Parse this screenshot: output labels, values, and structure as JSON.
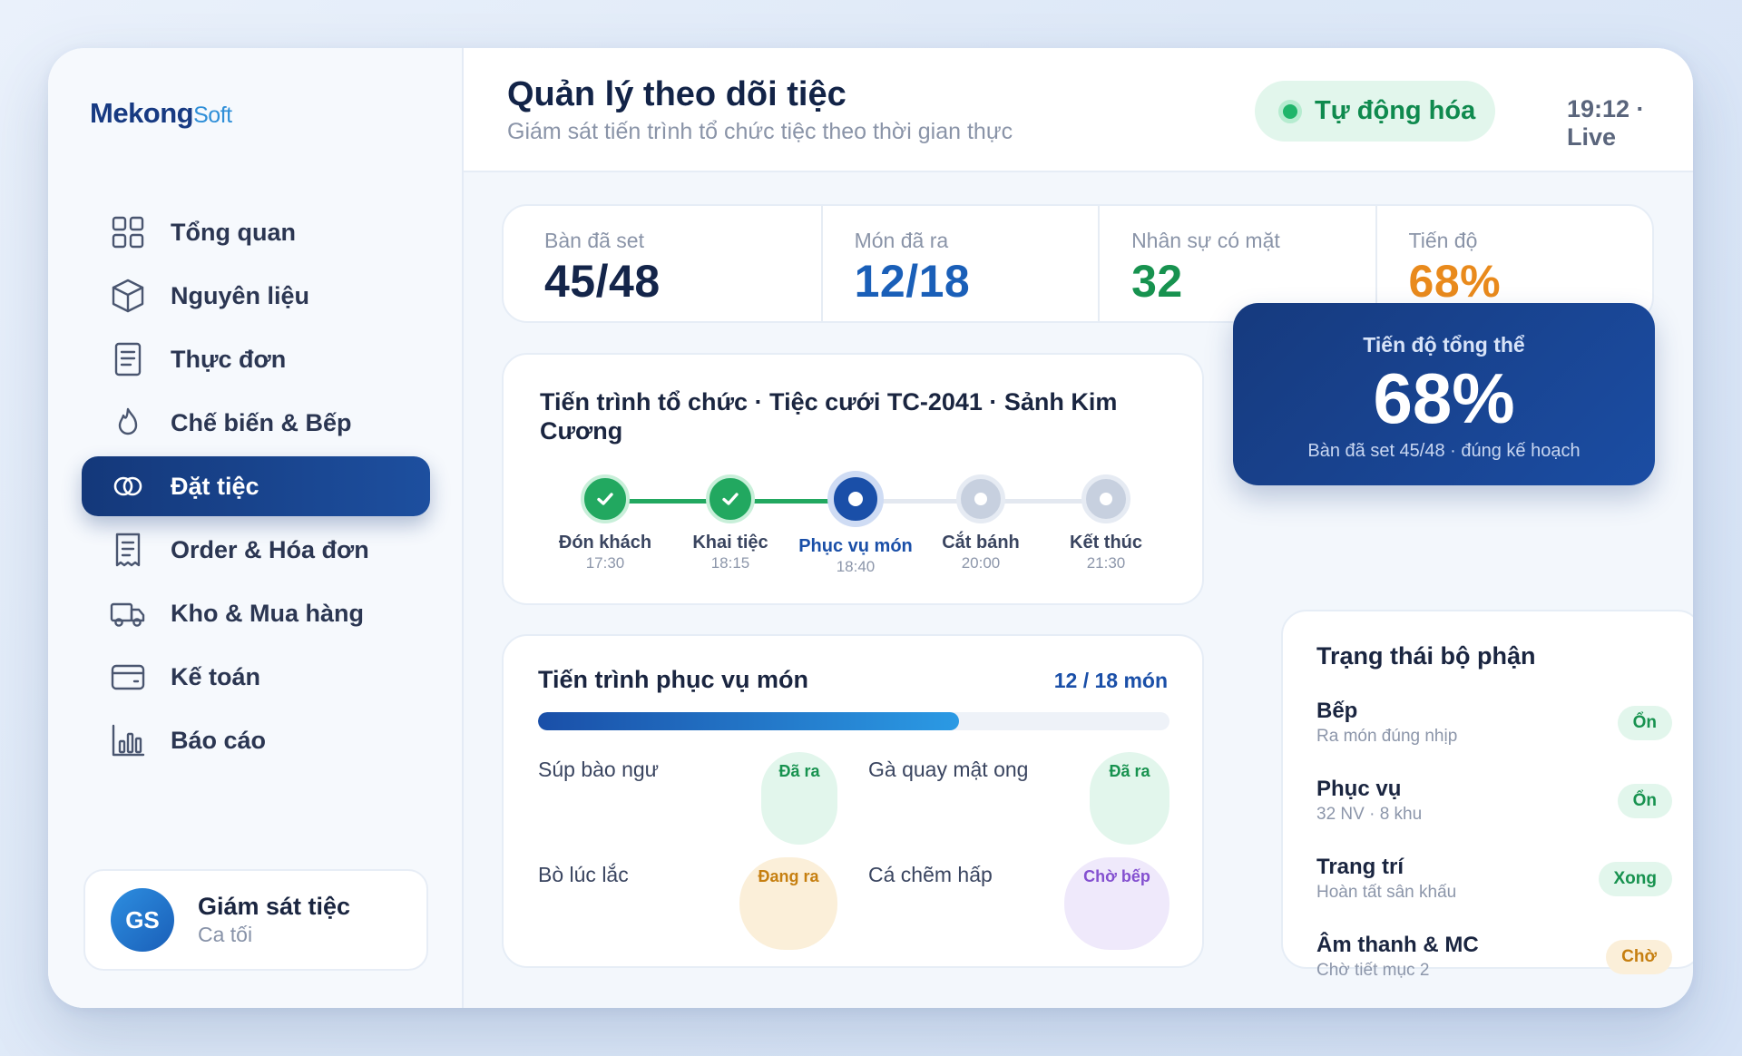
{
  "brand": {
    "part1": "Mekong",
    "part2": "Soft"
  },
  "nav": [
    {
      "label": "Tổng quan",
      "icon": "grid-icon"
    },
    {
      "label": "Nguyên liệu",
      "icon": "box-icon"
    },
    {
      "label": "Thực đơn",
      "icon": "document-icon"
    },
    {
      "label": "Chế biến & Bếp",
      "icon": "flame-icon"
    },
    {
      "label": "Đặt tiệc",
      "icon": "rings-icon",
      "active": true
    },
    {
      "label": "Order & Hóa đơn",
      "icon": "receipt-icon"
    },
    {
      "label": "Kho & Mua hàng",
      "icon": "truck-icon"
    },
    {
      "label": "Kế toán",
      "icon": "wallet-icon"
    },
    {
      "label": "Báo cáo",
      "icon": "bar-chart-icon"
    }
  ],
  "user": {
    "initials": "GS",
    "name": "Giám sát tiệc",
    "shift": "Ca tối"
  },
  "header": {
    "title": "Quản lý theo dõi tiệc",
    "subtitle": "Giám sát tiến trình tổ chức tiệc theo thời gian thực",
    "auto_label": "Tự động hóa",
    "clock": "19:12 · Live"
  },
  "stats": [
    {
      "label": "Bàn đã set",
      "value": "45/48",
      "color": "#14254a"
    },
    {
      "label": "Món đã ra",
      "value": "12/18",
      "color": "#1a5fb8"
    },
    {
      "label": "Nhân sự có mặt",
      "value": "32",
      "color": "#17924f"
    },
    {
      "label": "Tiến độ",
      "value": "68%",
      "color": "#e98a1c"
    }
  ],
  "timeline": {
    "title": "Tiến trình tổ chức · Tiệc cưới TC-2041 · Sảnh Kim Cương",
    "steps": [
      {
        "name": "Đón khách",
        "time": "17:30",
        "state": "done"
      },
      {
        "name": "Khai tiệc",
        "time": "18:15",
        "state": "done"
      },
      {
        "name": "Phục vụ món",
        "time": "18:40",
        "state": "current"
      },
      {
        "name": "Cắt bánh",
        "time": "20:00",
        "state": "todo"
      },
      {
        "name": "Kết thúc",
        "time": "21:30",
        "state": "todo"
      }
    ]
  },
  "overall": {
    "label": "Tiến độ tổng thể",
    "value": "68%",
    "subtitle": "Bàn đã set 45/48 · đúng kế hoạch"
  },
  "serving": {
    "title": "Tiến trình phục vụ món",
    "count": "12 / 18 món",
    "progress": 0.667,
    "dishes": [
      {
        "name": "Súp bào ngư",
        "status": "Đã ra",
        "bg": "#e2f6ec",
        "fg": "#17924f"
      },
      {
        "name": "Gà quay mật ong",
        "status": "Đã ra",
        "bg": "#e2f6ec",
        "fg": "#17924f"
      },
      {
        "name": "Bò lúc lắc",
        "status": "Đang ra",
        "bg": "#fbefd9",
        "fg": "#c67f10"
      },
      {
        "name": "Cá chẽm hấp",
        "status": "Chờ bếp",
        "bg": "#efe9fb",
        "fg": "#8450d0"
      }
    ]
  },
  "departments": {
    "title": "Trạng thái bộ phận",
    "items": [
      {
        "name": "Bếp",
        "sub": "Ra món đúng nhịp",
        "status": "Ổn",
        "bg": "#e2f6ec",
        "fg": "#17924f"
      },
      {
        "name": "Phục vụ",
        "sub": "32 NV · 8 khu",
        "status": "Ổn",
        "bg": "#e2f6ec",
        "fg": "#17924f"
      },
      {
        "name": "Trang trí",
        "sub": "Hoàn tất sân khấu",
        "status": "Xong",
        "bg": "#e2f6ec",
        "fg": "#17924f"
      },
      {
        "name": "Âm thanh & MC",
        "sub": "Chờ tiết mục 2",
        "status": "Chờ",
        "bg": "#fbefd9",
        "fg": "#c67f10"
      }
    ]
  },
  "colors": {
    "primary": "#163a7e",
    "accent": "#2b9ae4",
    "success": "#22a860"
  }
}
